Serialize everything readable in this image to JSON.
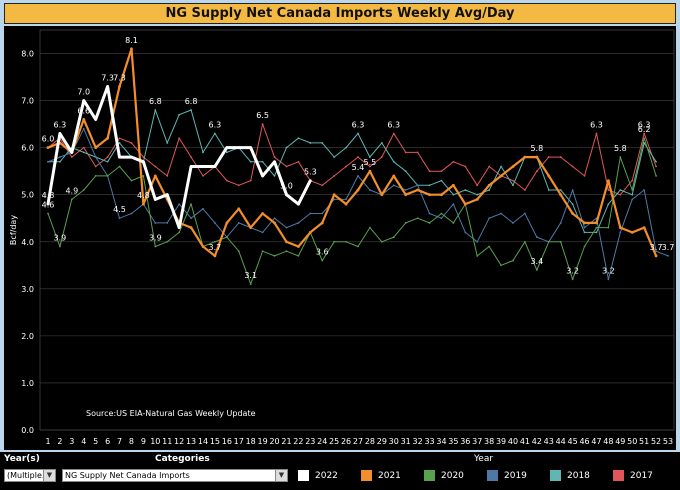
{
  "title": "NG Supply Net Canada Imports Weekly Avg/Day",
  "filters": {
    "year_label": "Year(s)",
    "year_value": "(Multiple...",
    "categories_label": "Categories",
    "categories_value": "NG Supply Net Canada Imports",
    "legend_title": "Year"
  },
  "dropdown_arrow": "▼",
  "chart_data": {
    "type": "line",
    "title": "NG Supply Net Canada Imports Weekly Avg/Day",
    "ylabel": "Bcf/day",
    "xlabel": "",
    "ylim": [
      0.0,
      8.5
    ],
    "yticks": [
      "0.0",
      "1.0",
      "2.0",
      "3.0",
      "4.0",
      "5.0",
      "6.0",
      "7.0",
      "8.0"
    ],
    "ytick_values": [
      0,
      1,
      2,
      3,
      4,
      5,
      6,
      7,
      8
    ],
    "x": [
      1,
      2,
      3,
      4,
      5,
      6,
      7,
      8,
      9,
      10,
      11,
      12,
      13,
      14,
      15,
      16,
      17,
      18,
      19,
      20,
      21,
      22,
      23,
      24,
      25,
      26,
      27,
      28,
      29,
      30,
      31,
      32,
      33,
      34,
      35,
      36,
      37,
      38,
      39,
      40,
      41,
      42,
      43,
      44,
      45,
      46,
      47,
      48,
      49,
      50,
      51,
      52,
      53
    ],
    "annotation": "Source:US EIA-Natural Gas Weekly Update",
    "grid": true,
    "legend_position": "bottom",
    "series": [
      {
        "name": "2017",
        "color": "#e15759",
        "width": 1,
        "values": [
          6.0,
          6.2,
          5.8,
          6.0,
          5.6,
          5.8,
          6.2,
          6.1,
          5.8,
          5.6,
          5.4,
          6.2,
          5.8,
          5.4,
          5.6,
          5.3,
          5.2,
          5.3,
          6.5,
          5.8,
          5.6,
          5.7,
          5.3,
          5.2,
          5.4,
          5.6,
          5.8,
          5.6,
          5.8,
          6.3,
          5.9,
          5.9,
          5.5,
          5.5,
          5.7,
          5.6,
          5.2,
          5.6,
          5.4,
          5.3,
          5.1,
          5.5,
          5.8,
          5.8,
          5.6,
          5.4,
          6.3,
          5.1,
          5.0,
          5.3,
          6.3,
          5.6,
          null
        ]
      },
      {
        "name": "2018",
        "color": "#5fb6b3",
        "width": 1,
        "values": [
          5.7,
          5.7,
          6.0,
          5.9,
          5.8,
          5.7,
          6.1,
          5.8,
          5.7,
          6.8,
          6.1,
          6.7,
          6.8,
          5.9,
          6.3,
          5.9,
          6.0,
          5.7,
          5.7,
          5.4,
          6.0,
          6.2,
          6.1,
          6.1,
          5.8,
          6.0,
          6.3,
          5.8,
          6.1,
          5.7,
          5.5,
          5.2,
          5.2,
          5.3,
          5.0,
          5.1,
          5.0,
          5.1,
          5.6,
          5.2,
          5.8,
          5.8,
          5.1,
          5.1,
          4.8,
          4.2,
          4.2,
          4.8,
          5.1,
          5.0,
          6.1,
          5.7,
          null
        ]
      },
      {
        "name": "2019",
        "color": "#4e79a7",
        "width": 1,
        "values": [
          5.7,
          5.8,
          5.9,
          6.4,
          5.8,
          5.4,
          4.5,
          4.6,
          4.8,
          4.4,
          4.4,
          4.8,
          4.5,
          4.7,
          4.4,
          4.1,
          4.4,
          4.3,
          4.2,
          4.5,
          4.3,
          4.4,
          4.6,
          4.6,
          4.9,
          4.9,
          5.4,
          5.1,
          5.0,
          5.2,
          5.1,
          5.2,
          4.6,
          4.5,
          4.8,
          4.2,
          4.0,
          4.5,
          4.6,
          4.4,
          4.6,
          4.1,
          4.0,
          4.4,
          5.1,
          4.3,
          4.5,
          3.2,
          4.2,
          4.9,
          5.1,
          3.8,
          3.7
        ]
      },
      {
        "name": "2020",
        "color": "#59a14f",
        "width": 1,
        "values": [
          4.6,
          3.9,
          4.9,
          5.1,
          5.4,
          5.4,
          5.6,
          5.3,
          5.4,
          3.9,
          4.0,
          4.2,
          4.8,
          3.9,
          4.0,
          4.1,
          3.8,
          3.1,
          3.8,
          3.7,
          3.8,
          3.7,
          4.2,
          3.6,
          4.0,
          4.0,
          3.9,
          4.3,
          4.0,
          4.1,
          4.4,
          4.5,
          4.4,
          4.6,
          4.4,
          4.8,
          3.7,
          3.9,
          3.5,
          3.6,
          4.0,
          3.4,
          4.0,
          4.0,
          3.2,
          3.9,
          4.3,
          4.3,
          5.8,
          5.1,
          6.2,
          5.4,
          null
        ]
      },
      {
        "name": "2021",
        "color": "#f28e2b",
        "width": 2.2,
        "values": [
          6.0,
          6.1,
          5.9,
          6.6,
          6.0,
          6.2,
          7.3,
          8.1,
          4.8,
          5.4,
          4.9,
          4.4,
          4.3,
          3.9,
          3.7,
          4.4,
          4.7,
          4.3,
          4.6,
          4.4,
          4.0,
          3.9,
          4.2,
          4.4,
          5.0,
          4.8,
          5.1,
          5.5,
          5.0,
          5.4,
          5.0,
          5.1,
          5.0,
          5.0,
          5.2,
          4.8,
          4.9,
          5.2,
          5.4,
          5.6,
          5.8,
          5.8,
          5.4,
          5.0,
          4.6,
          4.4,
          4.4,
          5.3,
          4.3,
          4.2,
          4.3,
          3.7,
          null
        ]
      },
      {
        "name": "2022",
        "color": "#ffffff",
        "width": 3,
        "values": [
          4.8,
          6.3,
          5.9,
          7.0,
          6.6,
          7.3,
          5.8,
          5.8,
          5.7,
          4.9,
          5.0,
          4.3,
          5.6,
          5.6,
          5.6,
          6.0,
          6.0,
          6.0,
          5.4,
          5.7,
          5.0,
          4.8,
          5.3,
          null,
          null,
          null,
          null,
          null,
          null,
          null,
          null,
          null,
          null,
          null,
          null,
          null,
          null,
          null,
          null,
          null,
          null,
          null,
          null,
          null,
          null,
          null,
          null,
          null,
          null,
          null,
          null,
          null,
          null
        ]
      }
    ],
    "point_labels": [
      {
        "series": "2022",
        "week": 1,
        "label": "4.8"
      },
      {
        "series": "2022",
        "week": 2,
        "label": "6.3"
      },
      {
        "series": "2022",
        "week": 4,
        "label": "7.0"
      },
      {
        "series": "2022",
        "week": 6,
        "label": "7.3"
      },
      {
        "series": "2022",
        "week": 21,
        "label": "5.0"
      },
      {
        "series": "2022",
        "week": 23,
        "label": "5.3"
      },
      {
        "series": "2021",
        "week": 1,
        "label": "6.0"
      },
      {
        "series": "2021",
        "week": 4,
        "label": "6.6"
      },
      {
        "series": "2021",
        "week": 7,
        "label": "7.3"
      },
      {
        "series": "2021",
        "week": 8,
        "label": "8.1"
      },
      {
        "series": "2021",
        "week": 9,
        "label": "4.8"
      },
      {
        "series": "2021",
        "week": 15,
        "label": "3.7"
      },
      {
        "series": "2021",
        "week": 28,
        "label": "5.5"
      },
      {
        "series": "2021",
        "week": 42,
        "label": "5.8"
      },
      {
        "series": "2021",
        "week": 52,
        "label": "3.7"
      },
      {
        "series": "2020",
        "week": 1,
        "label": "4.6"
      },
      {
        "series": "2020",
        "week": 2,
        "label": "3.9"
      },
      {
        "series": "2020",
        "week": 3,
        "label": "4.9"
      },
      {
        "series": "2020",
        "week": 10,
        "label": "3.9"
      },
      {
        "series": "2020",
        "week": 18,
        "label": "3.1"
      },
      {
        "series": "2020",
        "week": 24,
        "label": "3.6"
      },
      {
        "series": "2020",
        "week": 42,
        "label": "3.4"
      },
      {
        "series": "2020",
        "week": 45,
        "label": "3.2"
      },
      {
        "series": "2020",
        "week": 49,
        "label": "5.8"
      },
      {
        "series": "2020",
        "week": 51,
        "label": "6.2"
      },
      {
        "series": "2019",
        "week": 7,
        "label": "4.5"
      },
      {
        "series": "2019",
        "week": 27,
        "label": "5.4"
      },
      {
        "series": "2019",
        "week": 48,
        "label": "3.2"
      },
      {
        "series": "2019",
        "week": 53,
        "label": "3.7"
      },
      {
        "series": "2018",
        "week": 10,
        "label": "6.8"
      },
      {
        "series": "2018",
        "week": 13,
        "label": "6.8"
      },
      {
        "series": "2018",
        "week": 15,
        "label": "6.3"
      },
      {
        "series": "2018",
        "week": 27,
        "label": "6.3"
      },
      {
        "series": "2017",
        "week": 19,
        "label": "6.5"
      },
      {
        "series": "2017",
        "week": 30,
        "label": "6.3"
      },
      {
        "series": "2017",
        "week": 47,
        "label": "6.3"
      },
      {
        "series": "2017",
        "week": 51,
        "label": "6.3"
      }
    ]
  }
}
